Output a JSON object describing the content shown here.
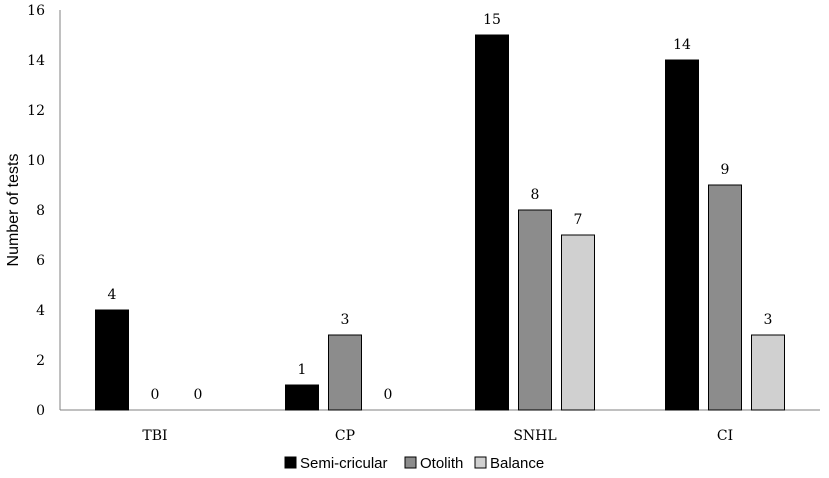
{
  "chart_data": {
    "type": "bar",
    "title": "",
    "xlabel": "",
    "ylabel": "Number of tests",
    "categories": [
      "TBI",
      "CP",
      "SNHL",
      "CI"
    ],
    "series": [
      {
        "name": "Semi-cricular",
        "color": "#000000",
        "values": [
          4,
          1,
          15,
          14
        ]
      },
      {
        "name": "Otolith",
        "color": "#8c8c8c",
        "values": [
          0,
          3,
          8,
          9
        ]
      },
      {
        "name": "Balance",
        "color": "#d0d0d0",
        "values": [
          0,
          0,
          7,
          3
        ]
      }
    ],
    "ylim": [
      0,
      16
    ],
    "yticks": [
      0,
      2,
      4,
      6,
      8,
      10,
      12,
      14,
      16
    ],
    "grid": false,
    "legend_position": "bottom-center",
    "data_labels": true
  }
}
